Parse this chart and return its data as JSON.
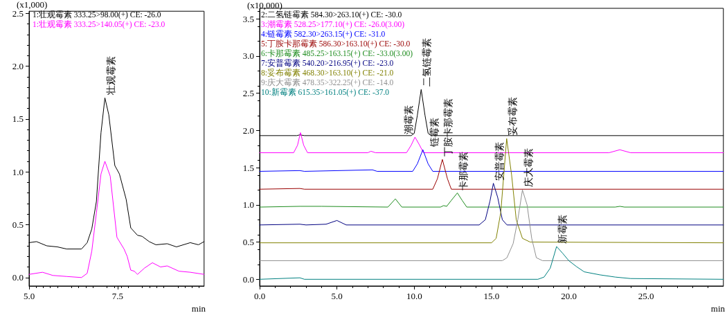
{
  "chart_data": [
    {
      "type": "line",
      "xlabel": "min",
      "ylabel": "(x1,000)",
      "legend": "top left",
      "xlim": [
        5,
        9.94
      ],
      "xticks": [
        {
          "value": 5,
          "label": "5.0"
        },
        {
          "value": 7.5,
          "label": "7.5"
        }
      ],
      "ylim": [
        -0.08,
        2.52
      ],
      "yticks": [
        {
          "value": 0,
          "label": "0.0"
        },
        {
          "value": 0.5,
          "label": "0.5"
        },
        {
          "value": 1,
          "label": "1.0"
        },
        {
          "value": 1.5,
          "label": "1.5"
        },
        {
          "value": 2,
          "label": "2.0"
        },
        {
          "value": 2.5,
          "label": "2.5"
        }
      ],
      "series": [
        {
          "name": "1:壮观霉素 333.25>98.00(+) CE: -26.0",
          "color": "#000000",
          "x": [
            5.0,
            5.21,
            5.5,
            5.8,
            6.06,
            6.48,
            6.64,
            6.77,
            6.9,
            7.03,
            7.14,
            7.25,
            7.42,
            7.55,
            7.74,
            7.87,
            8.06,
            8.19,
            8.39,
            8.58,
            8.9,
            9.16,
            9.55,
            9.78,
            9.94
          ],
          "values": [
            0.33,
            0.34,
            0.3,
            0.29,
            0.27,
            0.27,
            0.33,
            0.46,
            0.72,
            1.37,
            1.7,
            1.54,
            1.06,
            0.98,
            0.74,
            0.47,
            0.4,
            0.39,
            0.34,
            0.31,
            0.32,
            0.29,
            0.33,
            0.31,
            0.34
          ]
        },
        {
          "name": "1:壮观霉素 333.25>140.05(+) CE: -23.0",
          "color": "#ff00ff",
          "x": [
            5.0,
            5.38,
            5.67,
            6.06,
            6.48,
            6.64,
            6.77,
            6.9,
            7.03,
            7.14,
            7.29,
            7.48,
            7.68,
            7.77,
            7.87,
            7.97,
            8.06,
            8.26,
            8.48,
            8.71,
            8.9,
            9.23,
            9.55,
            9.94
          ],
          "values": [
            0.03,
            0.05,
            0.02,
            0.01,
            0.0,
            0.04,
            0.25,
            0.61,
            0.98,
            1.1,
            0.96,
            0.38,
            0.27,
            0.2,
            0.07,
            0.06,
            0.03,
            0.09,
            0.14,
            0.1,
            0.11,
            0.06,
            0.05,
            0.03
          ]
        }
      ],
      "annotations": [
        {
          "text": "壮观霉素",
          "x": 7.14,
          "y": 1.7
        }
      ]
    },
    {
      "type": "line",
      "xlabel": "min",
      "ylabel": "(x10,000)",
      "legend": "top left",
      "xlim": [
        0,
        30
      ],
      "xticks": [
        {
          "value": 0,
          "label": "0.0"
        },
        {
          "value": 5,
          "label": "5.0"
        },
        {
          "value": 10,
          "label": "10.0"
        },
        {
          "value": 15,
          "label": "15.0"
        },
        {
          "value": 20,
          "label": "20.0"
        },
        {
          "value": 25,
          "label": "25.0"
        }
      ],
      "ylim": [
        -0.09,
        3.64
      ],
      "yticks": [
        {
          "value": 0,
          "label": "0.0"
        },
        {
          "value": 0.5,
          "label": "0.5"
        },
        {
          "value": 1,
          "label": "1.0"
        },
        {
          "value": 1.5,
          "label": "1.5"
        },
        {
          "value": 2,
          "label": "2.0"
        },
        {
          "value": 2.5,
          "label": "2.5"
        },
        {
          "value": 3,
          "label": "3.0"
        },
        {
          "value": 3.5,
          "label": "3.5"
        }
      ],
      "series": [
        {
          "name": "2:二氢链霉素 584.30>263.10(+) CE: -30.0",
          "color": "#000000",
          "x": [
            0,
            2.4,
            2.6,
            2.9,
            9.8,
            10.0,
            10.2,
            10.45,
            10.7,
            10.9,
            11.1,
            30
          ],
          "values": [
            1.93,
            1.93,
            1.94,
            1.93,
            1.93,
            1.96,
            2.2,
            2.55,
            2.2,
            1.96,
            1.93,
            1.93
          ]
        },
        {
          "name": "3:潮霉素 528.25>177.10(+) CE: -26.0(3.00)",
          "color": "#ff00ff",
          "x": [
            0,
            2.2,
            2.45,
            2.64,
            2.85,
            3.1,
            7.0,
            7.2,
            7.5,
            9.5,
            9.8,
            10.05,
            10.35,
            10.6,
            22.6,
            23.3,
            24.0,
            30
          ],
          "values": [
            1.7,
            1.7,
            1.8,
            1.97,
            1.8,
            1.7,
            1.7,
            1.72,
            1.7,
            1.7,
            1.8,
            1.91,
            1.8,
            1.7,
            1.7,
            1.74,
            1.7,
            1.7
          ]
        },
        {
          "name": "4:链霉素 582.30>263.15(+) CE: -31.0",
          "color": "#0000ff",
          "x": [
            0,
            2.6,
            2.9,
            7.3,
            7.6,
            9.9,
            10.2,
            10.56,
            10.9,
            11.2,
            30
          ],
          "values": [
            1.45,
            1.46,
            1.45,
            1.47,
            1.45,
            1.45,
            1.55,
            1.74,
            1.55,
            1.45,
            1.45
          ]
        },
        {
          "name": "5:丁胺卡那霉素 586.30>163.10(+) CE: -30.0",
          "color": "#990000",
          "x": [
            0,
            2.6,
            2.9,
            11.2,
            11.5,
            11.82,
            12.15,
            12.4,
            30
          ],
          "values": [
            1.21,
            1.22,
            1.21,
            1.21,
            1.35,
            1.61,
            1.35,
            1.21,
            1.21
          ]
        },
        {
          "name": "6:卡那霉素 485.25>163.15(+) CE: -33.0(3.00)",
          "color": "#1e8c1e",
          "x": [
            0,
            2.6,
            4.0,
            8.3,
            8.78,
            9.2,
            11.7,
            11.9,
            12.1,
            12.4,
            12.79,
            13.1,
            13.4,
            23.0,
            23.3,
            23.6,
            30
          ],
          "values": [
            0.97,
            0.98,
            0.98,
            0.97,
            1.08,
            0.97,
            0.97,
            0.99,
            0.98,
            1.06,
            1.16,
            1.06,
            0.97,
            0.97,
            0.98,
            0.97,
            0.97
          ]
        },
        {
          "name": "7:安普霉素 540.20>216.95(+) CE: -23.0",
          "color": "#000080",
          "x": [
            0,
            2.6,
            3.0,
            4.3,
            5.0,
            5.6,
            14.2,
            14.6,
            14.9,
            15.12,
            15.4,
            15.7,
            16.0,
            30
          ],
          "values": [
            0.73,
            0.74,
            0.73,
            0.74,
            0.79,
            0.73,
            0.73,
            0.8,
            1.05,
            1.29,
            1.1,
            0.8,
            0.73,
            0.73
          ]
        },
        {
          "name": "8:妥布霉素 468.30>163.10(+) CE: -21.0",
          "color": "#808000",
          "x": [
            0,
            15.0,
            15.3,
            15.6,
            15.98,
            16.3,
            16.6,
            17.0,
            17.5,
            30
          ],
          "values": [
            0.49,
            0.49,
            0.55,
            0.9,
            1.89,
            1.4,
            0.8,
            0.55,
            0.5,
            0.49
          ]
        },
        {
          "name": "9:庆大霉素 478.35>322.25(+) CE: -14.0",
          "color": "#909090",
          "x": [
            0,
            15.7,
            16.0,
            16.4,
            16.7,
            17.0,
            17.3,
            17.6,
            17.9,
            18.3,
            30
          ],
          "values": [
            0.25,
            0.25,
            0.29,
            0.48,
            0.8,
            1.2,
            1.0,
            0.55,
            0.29,
            0.25,
            0.25
          ]
        },
        {
          "name": "10:新霉素 615.35>161.05(+) CE: -37.0",
          "color": "#008080",
          "x": [
            0,
            2.6,
            2.9,
            18.0,
            18.4,
            18.8,
            19.21,
            19.6,
            20.0,
            20.5,
            21.0,
            22.0,
            23.0,
            24.0,
            30
          ],
          "values": [
            0.0,
            0.02,
            0.0,
            0.0,
            0.03,
            0.15,
            0.44,
            0.35,
            0.25,
            0.17,
            0.1,
            0.06,
            0.03,
            0.01,
            0.0
          ]
        }
      ],
      "annotations": [
        {
          "text": "潮霉素",
          "x": 10.05,
          "y": 1.91
        },
        {
          "text": "二氢链霉素",
          "x": 10.45,
          "y": 2.55
        },
        {
          "text": "链霉素",
          "x": 10.56,
          "y": 1.74
        },
        {
          "text": "丁胺卡那霉素",
          "x": 11.82,
          "y": 1.61
        },
        {
          "text": "卡那霉素",
          "x": 12.79,
          "y": 1.16
        },
        {
          "text": "安普霉素",
          "x": 15.12,
          "y": 1.29
        },
        {
          "text": "妥布霉素",
          "x": 15.98,
          "y": 1.89
        },
        {
          "text": "庆大霉素",
          "x": 17.0,
          "y": 1.2
        },
        {
          "text": "新霉素",
          "x": 19.21,
          "y": 0.44
        }
      ]
    }
  ]
}
